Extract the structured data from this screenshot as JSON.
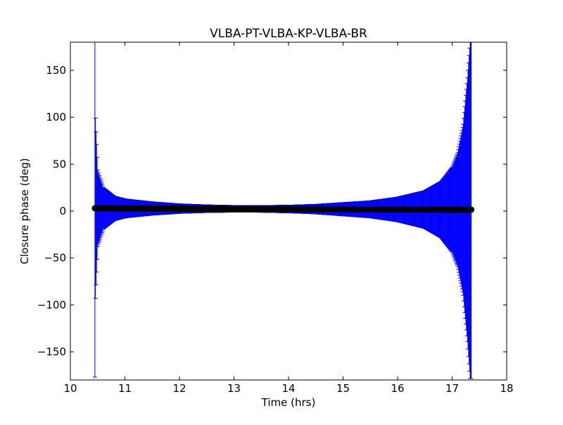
{
  "chart_data": {
    "type": "scatter",
    "title": "VLBA-PT-VLBA-KP-VLBA-BR",
    "xlabel": "Time (hrs)",
    "ylabel": "Closure phase (deg)",
    "xlim": [
      10,
      18
    ],
    "ylim": [
      -180,
      180
    ],
    "xticks": [
      10,
      11,
      12,
      13,
      14,
      15,
      16,
      17,
      18
    ],
    "yticks": [
      -150,
      -100,
      -50,
      0,
      50,
      100,
      150
    ],
    "xtick_labels": [
      "10",
      "11",
      "12",
      "13",
      "14",
      "15",
      "16",
      "17",
      "18"
    ],
    "ytick_labels": [
      "−150",
      "−100",
      "−50",
      "0",
      "50",
      "100",
      "150"
    ],
    "grid": false,
    "series": [
      {
        "x_range": [
          10.45,
          17.35
        ],
        "value_start": 3,
        "value_end": 1.5,
        "errorbar": {
          "samples": [
            {
              "x": 10.45,
              "err": 180
            },
            {
              "x": 10.46,
              "err": 95
            },
            {
              "x": 10.5,
              "err": 40
            },
            {
              "x": 10.6,
              "err": 22
            },
            {
              "x": 10.8,
              "err": 13
            },
            {
              "x": 11.0,
              "err": 10
            },
            {
              "x": 11.5,
              "err": 7
            },
            {
              "x": 12.0,
              "err": 5
            },
            {
              "x": 12.5,
              "err": 4
            },
            {
              "x": 13.0,
              "err": 3.5
            },
            {
              "x": 13.5,
              "err": 3.5
            },
            {
              "x": 14.0,
              "err": 4
            },
            {
              "x": 14.5,
              "err": 5
            },
            {
              "x": 15.0,
              "err": 7
            },
            {
              "x": 15.5,
              "err": 9
            },
            {
              "x": 16.0,
              "err": 13
            },
            {
              "x": 16.5,
              "err": 20
            },
            {
              "x": 16.8,
              "err": 30
            },
            {
              "x": 17.0,
              "err": 45
            },
            {
              "x": 17.1,
              "err": 60
            },
            {
              "x": 17.2,
              "err": 90
            },
            {
              "x": 17.28,
              "err": 140
            },
            {
              "x": 17.33,
              "err": 180
            }
          ]
        }
      }
    ],
    "colors": {
      "errorbar": "#0000ff",
      "marker": "#000000",
      "axes": "#000000",
      "background": "#ffffff"
    }
  }
}
